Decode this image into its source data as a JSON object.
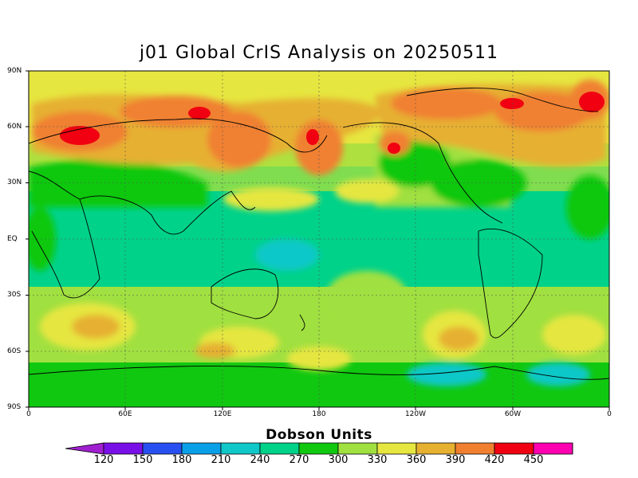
{
  "title": "j01 Global CrIS Analysis on 20250511",
  "latitude_labels": [
    "90N",
    "60N",
    "30N",
    "EQ",
    "30S",
    "60S",
    "90S"
  ],
  "longitude_labels": [
    "0",
    "60E",
    "120E",
    "180",
    "120W",
    "60W",
    "0"
  ],
  "colorbar": {
    "label": "Dobson Units",
    "ticks": [
      "120",
      "150",
      "180",
      "210",
      "240",
      "270",
      "300",
      "330",
      "360",
      "390",
      "420",
      "450"
    ],
    "colors": [
      "#a020d0",
      "#7a10e8",
      "#2850f0",
      "#0aa0e8",
      "#10c8c8",
      "#00d28a",
      "#10c810",
      "#a0e040",
      "#e6e640",
      "#e6b030",
      "#f08030",
      "#f00010",
      "#ff00b0",
      "#d810a0"
    ]
  }
}
